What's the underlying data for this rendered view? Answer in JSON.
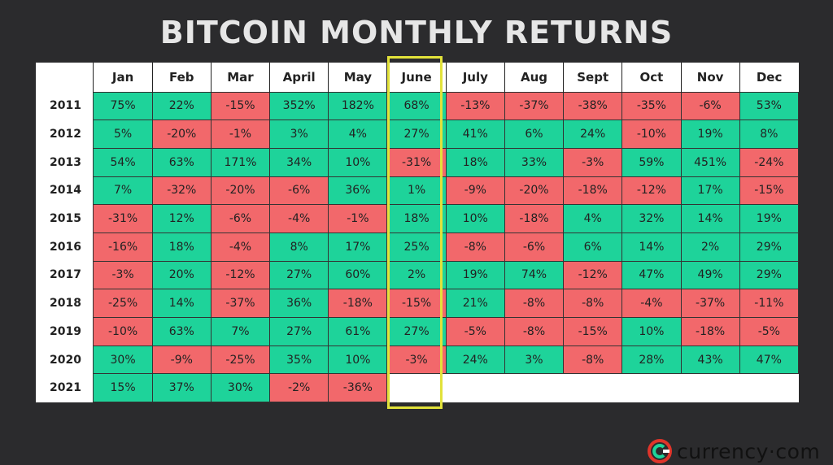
{
  "title": "BITCOIN MONTHLY RETURNS",
  "logo": {
    "text": "currency·com",
    "icon": "currency-com-logo-icon"
  },
  "colors": {
    "positive": "#1ed39a",
    "negative": "#f2686b",
    "highlight": "#e2e23a",
    "background": "#2b2b2d"
  },
  "highlighted_month": "June",
  "chart_data": {
    "type": "table",
    "title": "BITCOIN MONTHLY RETURNS",
    "columns": [
      "Jan",
      "Feb",
      "Mar",
      "April",
      "May",
      "June",
      "July",
      "Aug",
      "Sept",
      "Oct",
      "Nov",
      "Dec"
    ],
    "rows": [
      {
        "year": "2011",
        "values": [
          "75%",
          "22%",
          "-15%",
          "352%",
          "182%",
          "68%",
          "-13%",
          "-37%",
          "-38%",
          "-35%",
          "-6%",
          "53%"
        ]
      },
      {
        "year": "2012",
        "values": [
          "5%",
          "-20%",
          "-1%",
          "3%",
          "4%",
          "27%",
          "41%",
          "6%",
          "24%",
          "-10%",
          "19%",
          "8%"
        ]
      },
      {
        "year": "2013",
        "values": [
          "54%",
          "63%",
          "171%",
          "34%",
          "10%",
          "-31%",
          "18%",
          "33%",
          "-3%",
          "59%",
          "451%",
          "-24%"
        ]
      },
      {
        "year": "2014",
        "values": [
          "7%",
          "-32%",
          "-20%",
          "-6%",
          "36%",
          "1%",
          "-9%",
          "-20%",
          "-18%",
          "-12%",
          "17%",
          "-15%"
        ]
      },
      {
        "year": "2015",
        "values": [
          "-31%",
          "12%",
          "-6%",
          "-4%",
          "-1%",
          "18%",
          "10%",
          "-18%",
          "4%",
          "32%",
          "14%",
          "19%"
        ]
      },
      {
        "year": "2016",
        "values": [
          "-16%",
          "18%",
          "-4%",
          "8%",
          "17%",
          "25%",
          "-8%",
          "-6%",
          "6%",
          "14%",
          "2%",
          "29%"
        ]
      },
      {
        "year": "2017",
        "values": [
          "-3%",
          "20%",
          "-12%",
          "27%",
          "60%",
          "2%",
          "19%",
          "74%",
          "-12%",
          "47%",
          "49%",
          "29%"
        ]
      },
      {
        "year": "2018",
        "values": [
          "-25%",
          "14%",
          "-37%",
          "36%",
          "-18%",
          "-15%",
          "21%",
          "-8%",
          "-8%",
          "-4%",
          "-37%",
          "-11%"
        ]
      },
      {
        "year": "2019",
        "values": [
          "-10%",
          "63%",
          "7%",
          "27%",
          "61%",
          "27%",
          "-5%",
          "-8%",
          "-15%",
          "10%",
          "-18%",
          "-5%"
        ]
      },
      {
        "year": "2020",
        "values": [
          "30%",
          "-9%",
          "-25%",
          "35%",
          "10%",
          "-3%",
          "24%",
          "3%",
          "-8%",
          "28%",
          "43%",
          "47%"
        ]
      },
      {
        "year": "2021",
        "values": [
          "15%",
          "37%",
          "30%",
          "-2%",
          "-36%"
        ]
      }
    ]
  }
}
